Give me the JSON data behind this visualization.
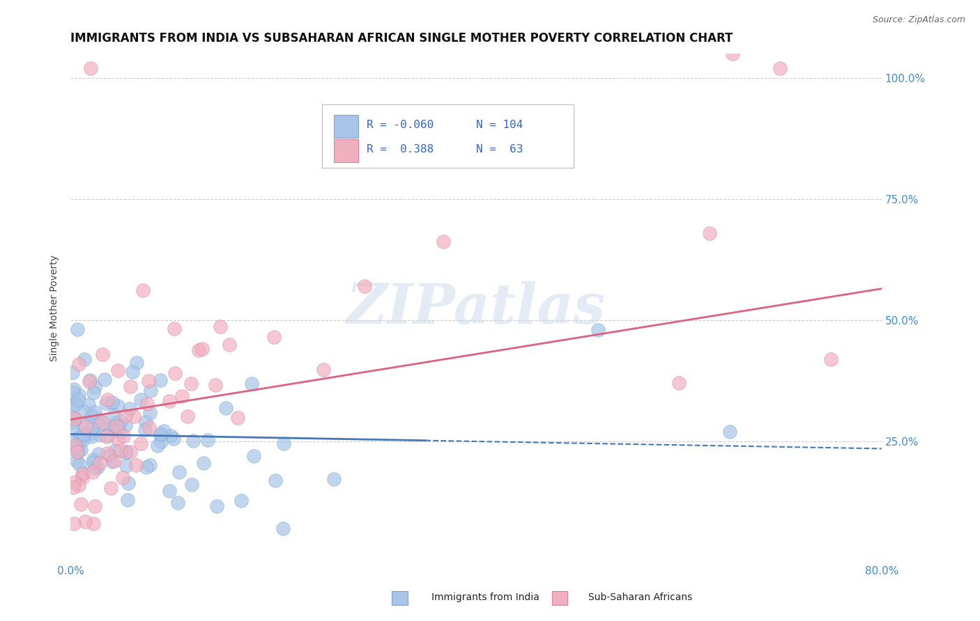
{
  "title": "IMMIGRANTS FROM INDIA VS SUBSAHARAN AFRICAN SINGLE MOTHER POVERTY CORRELATION CHART",
  "source_text": "Source: ZipAtlas.com",
  "ylabel": "Single Mother Poverty",
  "xlim": [
    0.0,
    0.8
  ],
  "ylim": [
    0.0,
    1.05
  ],
  "xticks": [
    0.0,
    0.1,
    0.2,
    0.3,
    0.4,
    0.5,
    0.6,
    0.7,
    0.8
  ],
  "xticklabels": [
    "0.0%",
    "",
    "",
    "",
    "",
    "",
    "",
    "",
    "80.0%"
  ],
  "ytick_positions": [
    0.25,
    0.5,
    0.75,
    1.0
  ],
  "ytick_labels": [
    "25.0%",
    "50.0%",
    "75.0%",
    "100.0%"
  ],
  "india_color": "#a8c4e8",
  "india_edge_color": "#7aaad0",
  "india_line_color": "#4477bb",
  "india_R": -0.06,
  "india_N": 104,
  "india_trend_x": [
    0.0,
    0.8
  ],
  "india_trend_y": [
    0.265,
    0.235
  ],
  "subsaharan_color": "#f0b0c0",
  "subsaharan_edge_color": "#e080a0",
  "subsaharan_line_color": "#e06080",
  "subsaharan_R": 0.388,
  "subsaharan_N": 63,
  "subsaharan_trend_x": [
    0.0,
    0.8
  ],
  "subsaharan_trend_y": [
    0.295,
    0.565
  ],
  "watermark": "ZIPatlas",
  "background_color": "#ffffff",
  "grid_color": "#c8c8c8",
  "title_fontsize": 12,
  "tick_color": "#4488cc",
  "legend_text_color": "#3366cc"
}
